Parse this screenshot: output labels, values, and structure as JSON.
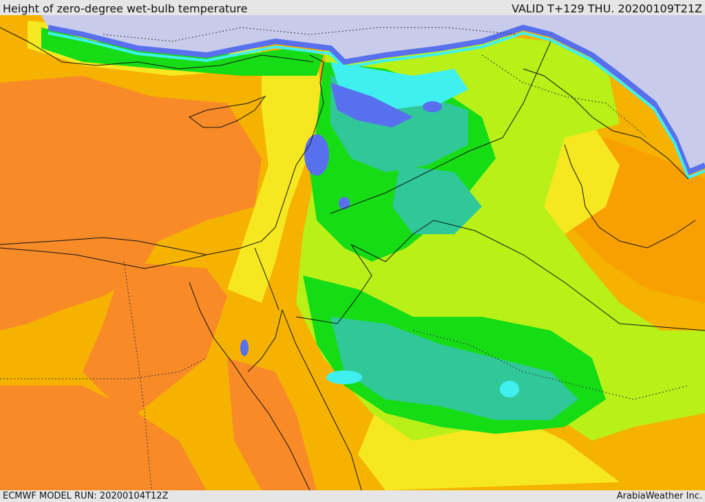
{
  "header": {
    "title": "Height of zero-degree wet-bulb temperature",
    "valid": "VALID T+129 THU. 20200109T21Z"
  },
  "footer": {
    "model_run": "ECMWF MODEL RUN: 20200104T12Z",
    "credit": "ArabiaWeather Inc."
  },
  "palette": {
    "sea_gray": "#c8ccea",
    "blue": "#5870ee",
    "light_blue": "#8c9cf4",
    "cyan": "#40f0f0",
    "teal": "#30c898",
    "green": "#16dc16",
    "light_green": "#8cf000",
    "yellow_green": "#d8f020",
    "yellow": "#f6e820",
    "orange_yellow": "#f8b400",
    "orange": "#f88a28",
    "dark_orange": "#f07820"
  }
}
